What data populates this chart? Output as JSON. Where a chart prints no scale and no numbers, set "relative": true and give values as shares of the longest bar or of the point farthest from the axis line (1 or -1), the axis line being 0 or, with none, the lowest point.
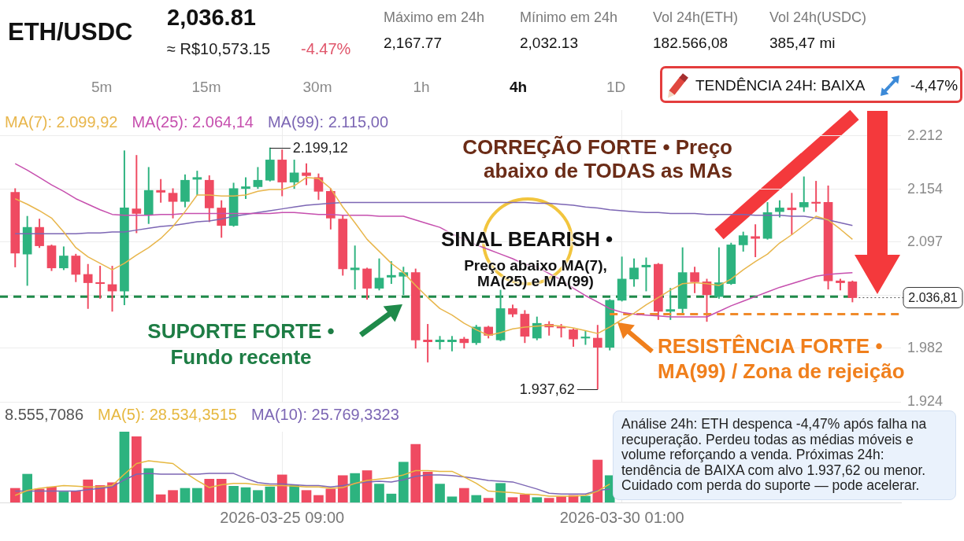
{
  "chart_data": [
    {
      "type": "other",
      "title": "ETH/USDC",
      "annotations": [
        "2,036.81",
        "≈ R$10,573.15",
        "-4.47%",
        "Máximo em 24h",
        "2,167.77",
        "Mínimo em 24h",
        "2,032.13",
        "Vol 24h(ETH)",
        "182.566,08",
        "Vol 24h(USDC)",
        "385,47 mi",
        "5m",
        "15m",
        "30m",
        "1h",
        "4h",
        "1D",
        "TENDÊNCIA 24H: BAIXA",
        "-4,47%"
      ]
    },
    {
      "type": "candlestick",
      "x": [
        "2026-03-21T17:00",
        "2026-03-21T21:00",
        "2026-03-22T01:00",
        "2026-03-22T05:00",
        "2026-03-22T09:00",
        "2026-03-22T13:00",
        "2026-03-22T17:00",
        "2026-03-22T21:00",
        "2026-03-23T01:00",
        "2026-03-23T05:00",
        "2026-03-23T09:00",
        "2026-03-23T13:00",
        "2026-03-23T17:00",
        "2026-03-23T21:00",
        "2026-03-24T01:00",
        "2026-03-24T05:00",
        "2026-03-24T09:00",
        "2026-03-24T13:00",
        "2026-03-24T17:00",
        "2026-03-24T21:00",
        "2026-03-25T01:00",
        "2026-03-25T05:00",
        "2026-03-25T09:00",
        "2026-03-25T13:00",
        "2026-03-25T17:00",
        "2026-03-25T21:00",
        "2026-03-26T01:00",
        "2026-03-26T05:00",
        "2026-03-26T09:00",
        "2026-03-26T13:00",
        "2026-03-26T17:00",
        "2026-03-26T21:00",
        "2026-03-27T01:00",
        "2026-03-27T05:00",
        "2026-03-27T09:00",
        "2026-03-27T13:00",
        "2026-03-27T17:00",
        "2026-03-27T21:00",
        "2026-03-28T01:00",
        "2026-03-28T05:00",
        "2026-03-28T09:00",
        "2026-03-28T13:00",
        "2026-03-28T17:00",
        "2026-03-28T21:00",
        "2026-03-29T01:00",
        "2026-03-29T05:00",
        "2026-03-29T09:00",
        "2026-03-29T13:00",
        "2026-03-29T17:00",
        "2026-03-29T21:00",
        "2026-03-30T01:00",
        "2026-03-30T05:00",
        "2026-03-30T09:00",
        "2026-03-30T13:00",
        "2026-03-30T17:00",
        "2026-03-30T21:00",
        "2026-03-31T01:00",
        "2026-03-31T05:00",
        "2026-03-31T09:00",
        "2026-03-31T13:00",
        "2026-03-31T17:00",
        "2026-03-31T21:00",
        "2026-04-01T01:00",
        "2026-04-01T05:00",
        "2026-04-01T09:00",
        "2026-04-01T13:00",
        "2026-04-01T17:00",
        "2026-04-01T21:00",
        "2026-04-02T01:00",
        "2026-04-02T05:00"
      ],
      "ohlc": [
        [
          2151,
          2155,
          2070,
          2085
        ],
        [
          2084,
          2125,
          2050,
          2113
        ],
        [
          2113,
          2122,
          2091,
          2093
        ],
        [
          2093,
          2094,
          2066,
          2069
        ],
        [
          2069,
          2092,
          2067,
          2082
        ],
        [
          2082,
          2084,
          2054,
          2062
        ],
        [
          2062,
          2073,
          2025,
          2053
        ],
        [
          2053,
          2071,
          2036,
          2052
        ],
        [
          2051,
          2071,
          2022,
          2044
        ],
        [
          2044,
          2196,
          2029,
          2134
        ],
        [
          2133,
          2191,
          2107,
          2128
        ],
        [
          2127,
          2178,
          2117,
          2153
        ],
        [
          2153,
          2165,
          2140,
          2151
        ],
        [
          2150,
          2155,
          2123,
          2141
        ],
        [
          2141,
          2170,
          2135,
          2164
        ],
        [
          2165,
          2174,
          2148,
          2167
        ],
        [
          2164,
          2169,
          2119,
          2134
        ],
        [
          2134,
          2142,
          2102,
          2115
        ],
        [
          2115,
          2161,
          2114,
          2155
        ],
        [
          2155,
          2167,
          2144,
          2157
        ],
        [
          2157,
          2178,
          2155,
          2164
        ],
        [
          2164,
          2199.12,
          2163,
          2186
        ],
        [
          2186,
          2197,
          2147,
          2162
        ],
        [
          2162,
          2186,
          2155,
          2172
        ],
        [
          2172,
          2182,
          2159,
          2169
        ],
        [
          2167,
          2171,
          2143,
          2152
        ],
        [
          2152,
          2155,
          2111,
          2123
        ],
        [
          2122,
          2126,
          2061,
          2068
        ],
        [
          2067,
          2093,
          2046,
          2069
        ],
        [
          2068,
          2069,
          2035,
          2047
        ],
        [
          2047,
          2079,
          2045,
          2058
        ],
        [
          2059,
          2076,
          2052,
          2061
        ],
        [
          2060,
          2070,
          2040,
          2064
        ],
        [
          2064,
          2068,
          1982,
          1991
        ],
        [
          1991,
          2008,
          1967,
          1989
        ],
        [
          1989,
          1995,
          1981,
          1991
        ],
        [
          1989,
          1995,
          1979,
          1991
        ],
        [
          1992,
          1994,
          1982,
          1988
        ],
        [
          1988,
          2007,
          1986,
          2005
        ],
        [
          2005,
          2006,
          1993,
          1996
        ],
        [
          1991,
          2045,
          1990,
          2025
        ],
        [
          2025,
          2029,
          2016,
          2019
        ],
        [
          2019,
          2023,
          1988,
          1995
        ],
        [
          1993,
          2016,
          1991,
          2009
        ],
        [
          2008,
          2011,
          1996,
          2005
        ],
        [
          2005,
          2008,
          1994,
          2004
        ],
        [
          2002,
          2003,
          1984,
          1992
        ],
        [
          1993,
          2001,
          1986,
          1994
        ],
        [
          1993,
          2007,
          1937.62,
          1983
        ],
        [
          1983,
          2035,
          1980,
          2034
        ],
        [
          2034,
          2081,
          2033,
          2057
        ],
        [
          2057,
          2079,
          2049,
          2069
        ],
        [
          2070,
          2080,
          2044,
          2072
        ],
        [
          2073,
          2074,
          2013,
          2022
        ],
        [
          2022,
          2047,
          2013,
          2024
        ],
        [
          2025,
          2091,
          2018,
          2064
        ],
        [
          2064,
          2070,
          2042,
          2054
        ],
        [
          2054,
          2057,
          2011,
          2040
        ],
        [
          2038,
          2091,
          2036,
          2053
        ],
        [
          2052,
          2096,
          2051,
          2094
        ],
        [
          2094,
          2108,
          2087,
          2104
        ],
        [
          2103,
          2116,
          2081,
          2101
        ],
        [
          2101,
          2140,
          2100,
          2129
        ],
        [
          2130,
          2142,
          2124,
          2134
        ],
        [
          2134,
          2150,
          2105,
          2132
        ],
        [
          2135,
          2167.77,
          2130,
          2140
        ],
        [
          2140,
          2163,
          2130,
          2139
        ],
        [
          2140,
          2158,
          2046,
          2055
        ],
        [
          2055,
          2057,
          2045,
          2053
        ],
        [
          2054,
          2055,
          2032.13,
          2036.81
        ]
      ],
      "colors": [
        "#ef4a61",
        "#2db37f",
        "#ef4a61",
        "#ef4a61",
        "#2db37f",
        "#ef4a61",
        "#ef4a61",
        "#ef4a61",
        "#ef4a61",
        "#2db37f",
        "#ef4a61",
        "#2db37f",
        "#ef4a61",
        "#ef4a61",
        "#2db37f",
        "#2db37f",
        "#ef4a61",
        "#ef4a61",
        "#2db37f",
        "#2db37f",
        "#2db37f",
        "#2db37f",
        "#ef4a61",
        "#2db37f",
        "#ef4a61",
        "#ef4a61",
        "#ef4a61",
        "#ef4a61",
        "#2db37f",
        "#ef4a61",
        "#2db37f",
        "#2db37f",
        "#2db37f",
        "#ef4a61",
        "#ef4a61",
        "#2db37f",
        "#2db37f",
        "#ef4a61",
        "#2db37f",
        "#ef4a61",
        "#2db37f",
        "#ef4a61",
        "#ef4a61",
        "#2db37f",
        "#ef4a61",
        "#ef4a61",
        "#ef4a61",
        "#2db37f",
        "#ef4a61",
        "#2db37f",
        "#2db37f",
        "#2db37f",
        "#2db37f",
        "#ef4a61",
        "#2db37f",
        "#2db37f",
        "#ef4a61",
        "#ef4a61",
        "#2db37f",
        "#2db37f",
        "#2db37f",
        "#ef4a61",
        "#2db37f",
        "#2db37f",
        "#ef4a61",
        "#2db37f",
        "#ef4a61",
        "#ef4a61",
        "#ef4a61",
        "#ef4a61"
      ],
      "series": [
        {
          "name": "MA(7): 2.099,92",
          "type": "line",
          "color": "#e8b64c",
          "values": [
            2144,
            2138,
            2131,
            2123,
            2108,
            2091,
            2081,
            2074,
            2067,
            2074,
            2083,
            2091,
            2101,
            2114,
            2130,
            2148,
            2148,
            2147,
            2147,
            2148,
            2152,
            2154,
            2154,
            2158,
            2167,
            2166,
            2155,
            2135,
            2118,
            2100,
            2087,
            2074,
            2064,
            2050,
            2037,
            2025,
            2018,
            2009,
            2002,
            1996,
            1999,
            2003,
            2005,
            2006,
            2007,
            2006,
            2004,
            2001,
            1998,
            2005,
            2013,
            2020,
            2029,
            2037,
            2045,
            2052,
            2053,
            2052,
            2050,
            2057,
            2067,
            2076,
            2084,
            2096,
            2105,
            2115,
            2125,
            2121,
            2111,
            2100
          ]
        },
        {
          "name": "MA(25): 2.064,14",
          "type": "line",
          "color": "#c64fae",
          "values": [
            2182,
            2175,
            2167,
            2159,
            2152,
            2144,
            2138,
            2132,
            2127,
            2126,
            2126,
            2126,
            2127,
            2127,
            2128,
            2128,
            2128,
            2128,
            2128,
            2128,
            2128,
            2128,
            2129,
            2129,
            2128,
            2127,
            2127,
            2126,
            2126,
            2126,
            2125,
            2125,
            2125,
            2121,
            2117,
            2113,
            2106,
            2100,
            2094,
            2089,
            2084,
            2079,
            2073,
            2070,
            2063,
            2056,
            2047,
            2039,
            2032,
            2025,
            2021,
            2019,
            2018,
            2017,
            2016,
            2016,
            2016,
            2016,
            2022,
            2028,
            2033,
            2038,
            2043,
            2048,
            2052,
            2056,
            2060,
            2062,
            2063,
            2064
          ]
        },
        {
          "name": "MA(99): 2.115,00",
          "type": "line",
          "color": "#7c66b4",
          "values": [
            2106,
            2106,
            2106,
            2106,
            2106,
            2106,
            2107,
            2107,
            2108,
            2108,
            2110,
            2112,
            2114,
            2115,
            2117,
            2119,
            2120,
            2122,
            2125,
            2127,
            2129,
            2131,
            2133,
            2135,
            2137,
            2138,
            2139,
            2140,
            2140,
            2140,
            2140,
            2140,
            2140,
            2140,
            2140,
            2140,
            2140,
            2140,
            2140,
            2140,
            2140,
            2140,
            2140,
            2139,
            2139,
            2138,
            2137,
            2135,
            2134,
            2132,
            2131,
            2130,
            2129,
            2129,
            2128,
            2128,
            2128,
            2127,
            2127,
            2127,
            2127,
            2126,
            2126,
            2126,
            2125,
            2125,
            2123,
            2121,
            2118,
            2115
          ]
        },
        {
          "type": "line",
          "color": "#f08a2a",
          "x": [
            "2026-03-29T21:00",
            "2026-04-02T21:00"
          ],
          "values": [
            2019,
            2019
          ],
          "line_style": "dashed"
        }
      ],
      "xlim": [
        "2026-03-21T12:00",
        "2026-04-02T21:00"
      ],
      "xticks": [
        "2026-03-25T09:00",
        "2026-03-30T01:00"
      ],
      "ylim": [
        1924,
        2240
      ],
      "yticks": [
        {
          "value": 2212,
          "label": "2.212"
        },
        {
          "value": 2154,
          "label": "2.154"
        },
        {
          "value": 2097,
          "label": "2.097"
        },
        {
          "value": 2039,
          "label": null
        },
        {
          "value": 1982,
          "label": "1.982"
        },
        {
          "value": 1924,
          "label": "1.924"
        }
      ],
      "ref_lines": [
        {
          "axis": "y",
          "value": 2038,
          "color": "#1f8a4a",
          "line_style": "dashed"
        },
        {
          "axis": "y",
          "value": 2036.81,
          "label": "2.036,81",
          "color": "#555555",
          "line_style": "dotted"
        }
      ],
      "annotations": [
        {
          "text": "2.199,12",
          "x": "2026-03-25T05:00",
          "y": 2199.12
        },
        {
          "text": "1.937,62",
          "x": "2026-03-29T17:00",
          "y": 1937.62
        },
        "CORREÇÃO FORTE • Preço abaixo de TODAS as MAs",
        "SINAL BEARISH •",
        "Preço abaixo MA(7), MA(25) e MA(99)",
        "SUPORTE FORTE • Fundo recente",
        "RESISTÊNCIA FORTE • MA(99) / Zona de rejeição"
      ],
      "grid": true,
      "legend": "top left",
      "tick_labels": "y"
    },
    {
      "type": "bar",
      "x": [
        "2026-03-21T17:00",
        "2026-03-21T21:00",
        "2026-03-22T01:00",
        "2026-03-22T05:00",
        "2026-03-22T09:00",
        "2026-03-22T13:00",
        "2026-03-22T17:00",
        "2026-03-22T21:00",
        "2026-03-23T01:00",
        "2026-03-23T05:00",
        "2026-03-23T09:00",
        "2026-03-23T13:00",
        "2026-03-23T17:00",
        "2026-03-23T21:00",
        "2026-03-24T01:00",
        "2026-03-24T05:00",
        "2026-03-24T09:00",
        "2026-03-24T13:00",
        "2026-03-24T17:00",
        "2026-03-24T21:00",
        "2026-03-25T01:00",
        "2026-03-25T05:00",
        "2026-03-25T09:00",
        "2026-03-25T13:00",
        "2026-03-25T17:00",
        "2026-03-25T21:00",
        "2026-03-26T01:00",
        "2026-03-26T05:00",
        "2026-03-26T09:00",
        "2026-03-26T13:00",
        "2026-03-26T17:00",
        "2026-03-26T21:00",
        "2026-03-27T01:00",
        "2026-03-27T05:00",
        "2026-03-27T09:00",
        "2026-03-27T13:00",
        "2026-03-27T17:00",
        "2026-03-27T21:00",
        "2026-03-28T01:00",
        "2026-03-28T05:00",
        "2026-03-28T09:00",
        "2026-03-28T13:00",
        "2026-03-28T17:00",
        "2026-03-28T21:00",
        "2026-03-29T01:00",
        "2026-03-29T05:00",
        "2026-03-29T09:00",
        "2026-03-29T13:00",
        "2026-03-29T17:00",
        "2026-03-29T21:00"
      ],
      "series": [
        {
          "values": [
            0.2,
            0.4,
            0.19,
            0.22,
            0.15,
            0.16,
            0.32,
            0.24,
            0.28,
            1,
            0.93,
            0.48,
            0.11,
            0.17,
            0.2,
            0.2,
            0.33,
            0.33,
            0.23,
            0.21,
            0.17,
            0.22,
            0.39,
            0.24,
            0.17,
            0.1,
            0.19,
            0.38,
            0.41,
            0.45,
            0.26,
            0.12,
            0.57,
            0.82,
            0.43,
            0.26,
            0.08,
            0.2,
            0.1,
            0.06,
            0.27,
            0.07,
            0.11,
            0.07,
            0.06,
            0.08,
            0.1,
            0.09,
            0.6,
            0.38
          ],
          "colors": [
            "#ef4a61",
            "#2db37f",
            "#ef4a61",
            "#ef4a61",
            "#2db37f",
            "#ef4a61",
            "#ef4a61",
            "#ef4a61",
            "#ef4a61",
            "#2db37f",
            "#ef4a61",
            "#2db37f",
            "#ef4a61",
            "#ef4a61",
            "#2db37f",
            "#2db37f",
            "#ef4a61",
            "#ef4a61",
            "#2db37f",
            "#2db37f",
            "#2db37f",
            "#2db37f",
            "#ef4a61",
            "#2db37f",
            "#ef4a61",
            "#ef4a61",
            "#ef4a61",
            "#ef4a61",
            "#2db37f",
            "#ef4a61",
            "#2db37f",
            "#2db37f",
            "#2db37f",
            "#ef4a61",
            "#ef4a61",
            "#2db37f",
            "#2db37f",
            "#ef4a61",
            "#2db37f",
            "#ef4a61",
            "#2db37f",
            "#ef4a61",
            "#ef4a61",
            "#2db37f",
            "#ef4a61",
            "#ef4a61",
            "#ef4a61",
            "#2db37f",
            "#ef4a61",
            "#2db37f"
          ]
        },
        {
          "name": "MA(5): 28.534,3515",
          "type": "line",
          "color": "#e6b840",
          "values": [
            0.1,
            0.17,
            0.2,
            0.22,
            0.24,
            0.23,
            0.22,
            0.22,
            0.24,
            0.4,
            0.55,
            0.59,
            0.57,
            0.55,
            0.42,
            0.31,
            0.21,
            0.25,
            0.27,
            0.27,
            0.25,
            0.24,
            0.24,
            0.23,
            0.22,
            0.22,
            0.2,
            0.21,
            0.27,
            0.31,
            0.33,
            0.35,
            0.39,
            0.45,
            0.45,
            0.44,
            0.44,
            0.36,
            0.27,
            0.16,
            0.15,
            0.14,
            0.12,
            0.11,
            0.09,
            0.09,
            0.09,
            0.1,
            0.16,
            0.26
          ]
        },
        {
          "name": "MA(10): 25.769,3323",
          "type": "line",
          "color": "#7c66b4",
          "values": [
            0.16,
            0.16,
            0.16,
            0.16,
            0.16,
            0.16,
            0.18,
            0.2,
            0.22,
            0.32,
            0.4,
            0.41,
            0.4,
            0.4,
            0.4,
            0.4,
            0.41,
            0.41,
            0.41,
            0.34,
            0.28,
            0.26,
            0.26,
            0.25,
            0.24,
            0.24,
            0.22,
            0.24,
            0.27,
            0.29,
            0.3,
            0.29,
            0.32,
            0.37,
            0.39,
            0.39,
            0.38,
            0.36,
            0.34,
            0.31,
            0.3,
            0.29,
            0.24,
            0.19,
            0.13,
            0.12,
            0.12,
            0.12,
            0.17,
            0.19
          ]
        }
      ],
      "relative": true,
      "xlim": [
        "2026-03-21T12:00",
        "2026-04-02T21:00"
      ],
      "xticks": [
        {
          "value": "2026-03-25T09:00",
          "label": "2026-03-25 09:00"
        },
        {
          "value": "2026-03-30T01:00",
          "label": "2026-03-30 01:00"
        }
      ],
      "annotations": [
        "8.555,7086",
        "Análise 24h: ETH despenca -4,47% após falha na recuperação. Perdeu todas as médias móveis e volume reforçando a venda. Próximas 24h: tendência de BAIXA com alvo 1.937,62 ou menor. Cuidado com perda do suporte — pode acelerar."
      ],
      "grid": "x",
      "legend": "top left",
      "tick_labels": "x"
    }
  ]
}
